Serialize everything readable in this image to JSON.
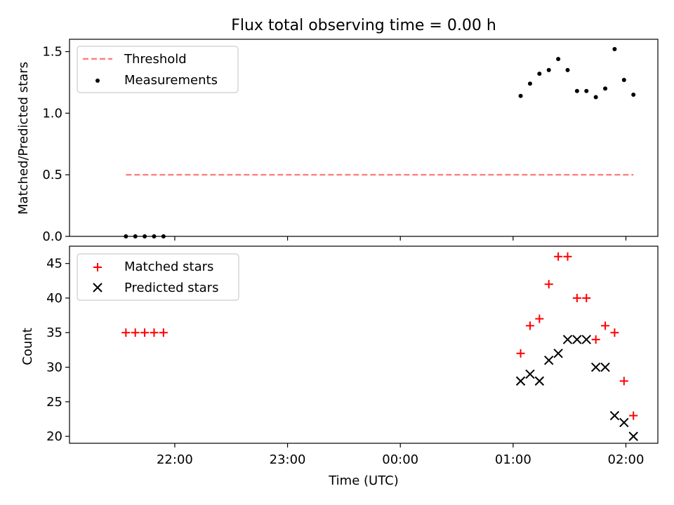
{
  "chart_data": [
    {
      "type": "scatter",
      "title": "Flux total observing time = 0.00 h",
      "xlabel": "",
      "ylabel": "Matched/Predicted stars",
      "ylim": [
        0,
        1.6
      ],
      "yticks": [
        "0.0",
        "0.5",
        "1.0",
        "1.5"
      ],
      "grid": false,
      "legend": "top-left",
      "series": [
        {
          "name": "Threshold",
          "kind": "dashed-line",
          "color": "#ff7f7f",
          "x": [
            "21:34",
            "02:04"
          ],
          "y": [
            0.5,
            0.5
          ]
        },
        {
          "name": "Measurements",
          "kind": "dot",
          "color": "#000000",
          "x": [
            "21:34",
            "21:39",
            "21:44",
            "21:49",
            "21:54",
            "01:04",
            "01:09",
            "01:14",
            "01:19",
            "01:24",
            "01:29",
            "01:34",
            "01:39",
            "01:44",
            "01:49",
            "01:54",
            "01:59",
            "02:04"
          ],
          "y": [
            0,
            0,
            0,
            0,
            0,
            1.14,
            1.24,
            1.32,
            1.35,
            1.44,
            1.35,
            1.18,
            1.18,
            1.13,
            1.2,
            1.52,
            1.27,
            1.15
          ]
        }
      ]
    },
    {
      "type": "scatter",
      "title": "",
      "xlabel": "Time (UTC)",
      "ylabel": "Count",
      "ylim": [
        19,
        47.5
      ],
      "yticks": [
        "20",
        "25",
        "30",
        "35",
        "40",
        "45"
      ],
      "xticks": [
        "22:00",
        "23:00",
        "00:00",
        "01:00",
        "02:00"
      ],
      "grid": false,
      "legend": "top-left",
      "series": [
        {
          "name": "Matched stars",
          "kind": "plus",
          "color": "#ff0000",
          "x": [
            "21:34",
            "21:39",
            "21:44",
            "21:49",
            "21:54",
            "01:04",
            "01:09",
            "01:14",
            "01:19",
            "01:24",
            "01:29",
            "01:34",
            "01:39",
            "01:44",
            "01:49",
            "01:54",
            "01:59",
            "02:04"
          ],
          "y": [
            35,
            35,
            35,
            35,
            35,
            32,
            36,
            37,
            42,
            46,
            46,
            40,
            40,
            34,
            36,
            35,
            28,
            23
          ]
        },
        {
          "name": "Predicted stars",
          "kind": "x",
          "color": "#000000",
          "x": [
            "01:04",
            "01:09",
            "01:14",
            "01:19",
            "01:24",
            "01:29",
            "01:34",
            "01:39",
            "01:44",
            "01:49",
            "01:54",
            "01:59",
            "02:04"
          ],
          "y": [
            28,
            29,
            28,
            31,
            32,
            34,
            34,
            34,
            30,
            30,
            23,
            22,
            20
          ]
        }
      ]
    }
  ]
}
